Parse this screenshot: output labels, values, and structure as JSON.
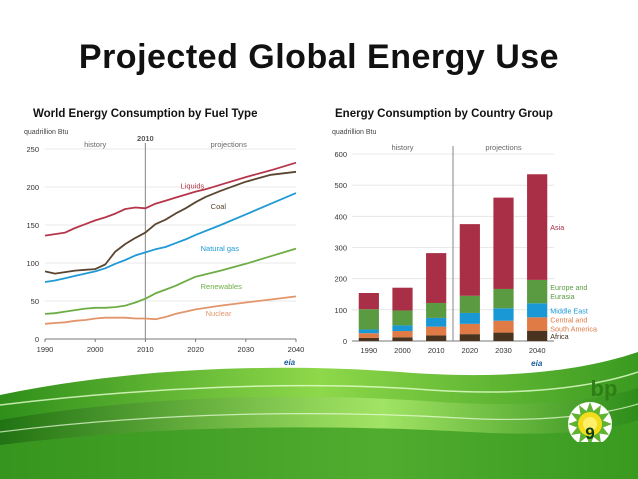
{
  "slide": {
    "title": "Projected Global Energy Use",
    "page_number": "9",
    "logo_text": "bp"
  },
  "colors": {
    "liquids": "#b5364a",
    "coal": "#5a4530",
    "natural_gas": "#1f9ad6",
    "renewables": "#6dad45",
    "nuclear": "#e3956a",
    "asia": "#a82f45",
    "europe_eurasia": "#5a9a40",
    "middle_east": "#1a98d5",
    "central_south_america": "#e07b45",
    "africa": "#4a3420",
    "bp_green": "#5fb330"
  },
  "chart_data": [
    {
      "type": "line",
      "title": "World Energy Consumption by Fuel Type",
      "unit_label": "quadrillion Btu",
      "xlim": [
        1990,
        2040
      ],
      "ylim": [
        0,
        250
      ],
      "x_ticks": [
        "1990",
        "2000",
        "2010",
        "2020",
        "2030",
        "2040"
      ],
      "y_ticks": [
        "0",
        "50",
        "100",
        "150",
        "200",
        "250"
      ],
      "period_labels": [
        "history",
        "2010",
        "projections"
      ],
      "divider_x": 2010,
      "source_logo": "eia",
      "series": [
        {
          "name": "Liquids",
          "color_key": "liquids",
          "x": [
            1990,
            1992,
            1994,
            1996,
            1998,
            2000,
            2002,
            2004,
            2006,
            2008,
            2010,
            2012,
            2014,
            2016,
            2018,
            2020,
            2022,
            2025,
            2030,
            2035,
            2040
          ],
          "values": [
            136,
            138,
            140,
            146,
            151,
            156,
            160,
            165,
            171,
            173,
            172,
            178,
            182,
            186,
            190,
            194,
            197,
            203,
            213,
            222,
            232
          ]
        },
        {
          "name": "Coal",
          "color_key": "coal",
          "x": [
            1990,
            1992,
            1994,
            1996,
            1998,
            2000,
            2002,
            2004,
            2006,
            2008,
            2010,
            2012,
            2014,
            2016,
            2018,
            2020,
            2022,
            2025,
            2030,
            2035,
            2040
          ],
          "values": [
            89,
            86,
            88,
            90,
            91,
            92,
            98,
            115,
            125,
            133,
            140,
            151,
            157,
            165,
            172,
            180,
            187,
            195,
            207,
            216,
            220
          ]
        },
        {
          "name": "Natural gas",
          "color_key": "natural_gas",
          "x": [
            1990,
            1992,
            1994,
            1996,
            1998,
            2000,
            2002,
            2004,
            2006,
            2008,
            2010,
            2012,
            2014,
            2016,
            2018,
            2020,
            2025,
            2030,
            2035,
            2040
          ],
          "values": [
            75,
            77,
            80,
            83,
            86,
            89,
            93,
            99,
            104,
            110,
            114,
            118,
            121,
            126,
            131,
            137,
            150,
            164,
            178,
            192
          ]
        },
        {
          "name": "Renewables",
          "color_key": "renewables",
          "x": [
            1990,
            1992,
            1994,
            1996,
            1998,
            2000,
            2002,
            2004,
            2006,
            2008,
            2010,
            2012,
            2014,
            2016,
            2018,
            2020,
            2025,
            2030,
            2035,
            2040
          ],
          "values": [
            33,
            34,
            36,
            38,
            40,
            41,
            41,
            42,
            44,
            48,
            53,
            60,
            65,
            70,
            76,
            82,
            90,
            99,
            109,
            119
          ]
        },
        {
          "name": "Nuclear",
          "color_key": "nuclear",
          "x": [
            1990,
            1992,
            1994,
            1996,
            1998,
            2000,
            2002,
            2004,
            2006,
            2008,
            2010,
            2012,
            2014,
            2016,
            2018,
            2020,
            2025,
            2030,
            2035,
            2040
          ],
          "values": [
            20,
            21,
            22,
            24,
            25,
            27,
            28,
            28,
            28,
            27,
            27,
            26,
            29,
            33,
            36,
            39,
            44,
            48,
            52,
            56
          ]
        }
      ]
    },
    {
      "type": "bar",
      "stacked": true,
      "title": "Energy Consumption by Country Group",
      "unit_label": "quadrillion Btu",
      "ylim": [
        0,
        600
      ],
      "y_ticks": [
        "0",
        "100",
        "200",
        "300",
        "400",
        "500",
        "600"
      ],
      "categories": [
        "1990",
        "2000",
        "2010",
        "2020",
        "2030",
        "2040"
      ],
      "period_labels": [
        "history",
        "projections"
      ],
      "divider_after_index": 2,
      "source_logo": "eia",
      "series": [
        {
          "name": "Africa",
          "color_key": "africa",
          "values": [
            10,
            12,
            18,
            22,
            27,
            33
          ]
        },
        {
          "name": "Central and South America",
          "color_key": "central_south_america",
          "values": [
            15,
            20,
            28,
            33,
            38,
            43
          ]
        },
        {
          "name": "Middle East",
          "color_key": "middle_east",
          "values": [
            12,
            18,
            28,
            35,
            40,
            45
          ]
        },
        {
          "name": "Europe and Eurasia",
          "color_key": "europe_eurasia",
          "values": [
            65,
            48,
            48,
            55,
            62,
            75
          ]
        },
        {
          "name": "Asia",
          "color_key": "asia",
          "values": [
            52,
            73,
            160,
            230,
            293,
            339
          ]
        }
      ]
    }
  ]
}
